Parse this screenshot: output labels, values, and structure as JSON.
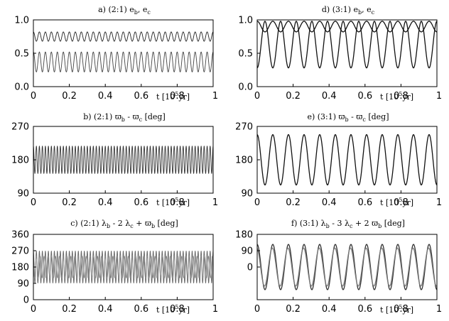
{
  "chart_data": [
    {
      "id": "a",
      "type": "line",
      "title_parts": [
        "a) (2:1)  e",
        "b",
        ", e",
        "c"
      ],
      "xlabel_parts": [
        "t [10",
        "5",
        "yr]"
      ],
      "xlim": [
        0,
        1
      ],
      "ylim": [
        0,
        1
      ],
      "xticks": [
        "0",
        "0.2",
        "0.4",
        "0.6",
        "0.8",
        "1"
      ],
      "yticks": [
        {
          "value": 0,
          "label": "0.0"
        },
        {
          "value": 0.5,
          "label": "0.5"
        },
        {
          "value": 1,
          "label": "1.0"
        }
      ],
      "series": [
        {
          "mean": 0.75,
          "amplitude": 0.07,
          "cycles": 30,
          "color": "#222222"
        },
        {
          "mean": 0.37,
          "amplitude": 0.15,
          "cycles": 30,
          "color": "#444444"
        }
      ]
    },
    {
      "id": "d",
      "type": "line",
      "title_parts": [
        "d) (3:1)  e",
        "b",
        ", e",
        "c"
      ],
      "xlabel_parts": [
        "t [10",
        "5",
        "yr]"
      ],
      "xlim": [
        0,
        1
      ],
      "ylim": [
        0,
        1
      ],
      "xticks": [
        "0",
        "0.2",
        "0.4",
        "0.6",
        "0.8",
        "1"
      ],
      "yticks": [
        {
          "value": 0,
          "label": "0.0"
        },
        {
          "value": 0.5,
          "label": "0.5"
        },
        {
          "value": 1,
          "label": "1.0"
        }
      ],
      "series": [
        {
          "mean": 0.9,
          "amplitude": 0.08,
          "cycles": 11.5,
          "color": "#111111"
        },
        {
          "mean": 0.63,
          "amplitude": 0.35,
          "cycles": 11.5,
          "phase": 3.1416,
          "color": "#111111"
        }
      ]
    },
    {
      "id": "b",
      "type": "line",
      "title_parts": [
        "b) (2:1)  ϖ",
        "b",
        " - ϖ",
        "c",
        " [deg]"
      ],
      "xlabel_parts": [
        "t [10",
        "5",
        "yr]"
      ],
      "xlim": [
        0,
        1
      ],
      "ylim": [
        90,
        270
      ],
      "xticks": [
        "0",
        "0.2",
        "0.4",
        "0.6",
        "0.8",
        "1"
      ],
      "yticks": [
        {
          "value": 90,
          "label": "90"
        },
        {
          "value": 180,
          "label": "180"
        },
        {
          "value": 270,
          "label": "270"
        }
      ],
      "series": [
        {
          "mean": 180,
          "amplitude": 37,
          "cycles": 60,
          "color": "#333333"
        }
      ]
    },
    {
      "id": "e",
      "type": "line",
      "title_parts": [
        "e) (3:1)  ϖ",
        "b",
        " - ϖ",
        "c",
        " [deg]"
      ],
      "xlabel_parts": [
        "t [10",
        "5",
        "yr]"
      ],
      "xlim": [
        0,
        1
      ],
      "ylim": [
        90,
        270
      ],
      "xticks": [
        "0",
        "0.2",
        "0.4",
        "0.6",
        "0.8",
        "1"
      ],
      "yticks": [
        {
          "value": 90,
          "label": "90"
        },
        {
          "value": 180,
          "label": "180"
        },
        {
          "value": 270,
          "label": "270"
        }
      ],
      "series": [
        {
          "mean": 180,
          "amplitude": 68,
          "cycles": 11.5,
          "color": "#111111"
        }
      ]
    },
    {
      "id": "c",
      "type": "line",
      "title_parts": [
        "c) (2:1)  λ",
        "b",
        " - 2 λ",
        "c",
        " + ϖ",
        "b",
        " [deg]"
      ],
      "xlabel_parts": [
        "t [10",
        "5",
        "yr]"
      ],
      "xlim": [
        0,
        1
      ],
      "ylim": [
        0,
        360
      ],
      "xticks": [
        "0",
        "0.2",
        "0.4",
        "0.6",
        "0.8",
        "1"
      ],
      "yticks": [
        {
          "value": 0,
          "label": "0"
        },
        {
          "value": 90,
          "label": "90"
        },
        {
          "value": 180,
          "label": "180"
        },
        {
          "value": 270,
          "label": "270"
        },
        {
          "value": 360,
          "label": "360"
        }
      ],
      "series": [
        {
          "mean": 180,
          "amplitude": 88,
          "cycles": 60,
          "color": "#666666"
        },
        {
          "mean": 180,
          "amplitude": 60,
          "cycles": 47,
          "phase": 1.3,
          "color": "#888888"
        }
      ]
    },
    {
      "id": "f",
      "type": "line",
      "title_parts": [
        "f) (3:1)  λ",
        "b",
        " - 3 λ",
        "c",
        " + 2 ϖ",
        "b",
        " [deg]"
      ],
      "xlabel_parts": [
        "t [10",
        "5",
        "yr]"
      ],
      "xlim": [
        0,
        1
      ],
      "ylim": [
        -180,
        180
      ],
      "xticks": [
        "0",
        "0.2",
        "0.4",
        "0.6",
        "0.8",
        "1"
      ],
      "yticks": [
        {
          "value": 0,
          "label": "0"
        },
        {
          "value": 90,
          "label": "90"
        },
        {
          "value": 180,
          "label": "180"
        }
      ],
      "series": [
        {
          "mean": 0,
          "amplitude": 125,
          "cycles": 11.5,
          "color": "#333333"
        },
        {
          "mean": 0,
          "amplitude": 105,
          "cycles": 11.5,
          "phase": 0.2,
          "color": "#777777"
        }
      ]
    }
  ]
}
